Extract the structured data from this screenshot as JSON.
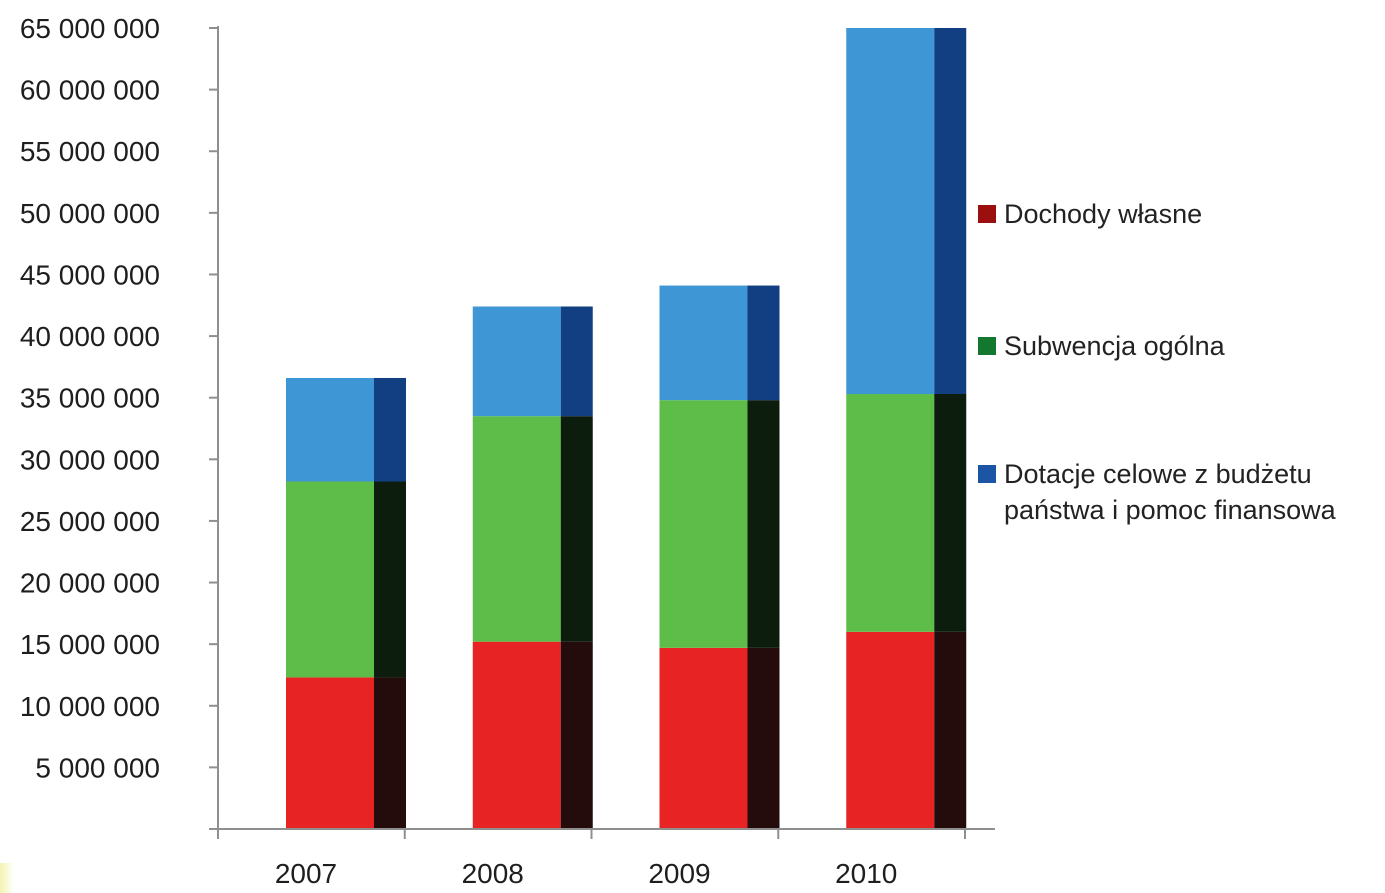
{
  "chart_data": {
    "type": "bar",
    "stacked": true,
    "categories": [
      "2007",
      "2008",
      "2009",
      "2010"
    ],
    "series": [
      {
        "name": "Dochody własne",
        "values": [
          12300000,
          15200000,
          14700000,
          16000000
        ],
        "color": "#e82323",
        "shade": "#240c0c",
        "legend_color": "#9c0f0f"
      },
      {
        "name": "Subwencja ogólna",
        "values": [
          15900000,
          18300000,
          20100000,
          19300000
        ],
        "color": "#5dbd48",
        "shade": "#0c1c0d",
        "legend_color": "#14772f"
      },
      {
        "name": "Dotacje celowe z budżetu państwa i pomoc finansowa",
        "values": [
          8400000,
          8900000,
          9300000,
          29700000
        ],
        "color": "#3f96d5",
        "shade": "#123f82",
        "legend_color": "#1b55a3"
      }
    ],
    "ylim": [
      0,
      65000000
    ],
    "yticks": [
      5000000,
      10000000,
      15000000,
      20000000,
      25000000,
      30000000,
      35000000,
      40000000,
      45000000,
      50000000,
      55000000,
      60000000,
      65000000
    ],
    "ytick_labels": [
      "5 000 000",
      "10 000 000",
      "15 000 000",
      "20 000 000",
      "25 000 000",
      "30 000 000",
      "35 000 000",
      "40 000 000",
      "45 000 000",
      "50 000 000",
      "55 000 000",
      "60 000 000",
      "65 000 000"
    ],
    "legend_position": "right",
    "grid": false
  }
}
